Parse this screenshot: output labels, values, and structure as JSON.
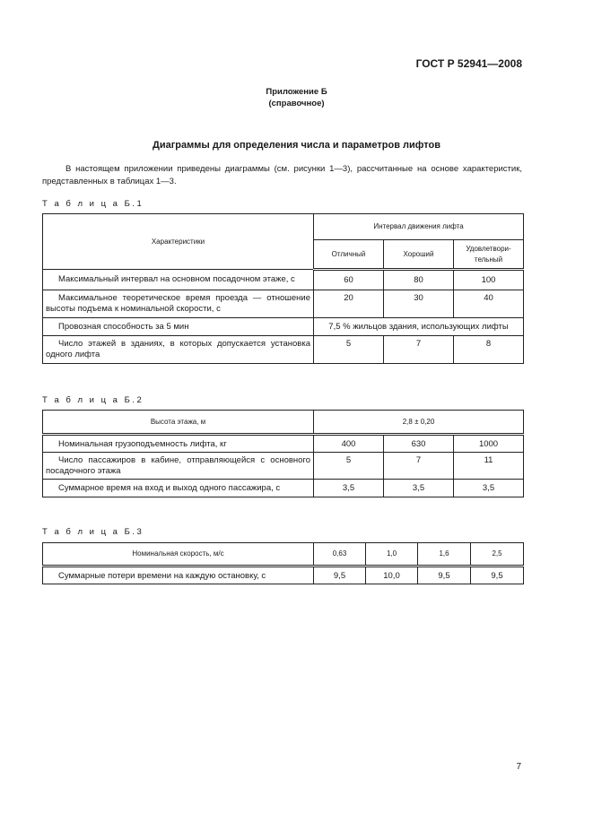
{
  "header": {
    "doc_id": "ГОСТ Р 52941—2008"
  },
  "appendix": {
    "label": "Приложение Б",
    "type": "(справочное)"
  },
  "title": "Диаграммы для определения числа и параметров лифтов",
  "intro": "В настоящем приложении приведены диаграммы (см. рисунки 1—3), рассчитанные на основе характеристик, представленных в таблицах 1—3.",
  "table1": {
    "caption": "Т а б л и ц а  Б.1",
    "col_header": "Характеристики",
    "group_header": "Интервал движения лифта",
    "sub_headers": [
      "Отличный",
      "Хороший",
      "Удовлетвори-тельный"
    ],
    "rows": [
      {
        "label": "Максимальный интервал на основном посадочном этаже, с",
        "values": [
          "60",
          "80",
          "100"
        ]
      },
      {
        "label": "Максимальное теоретическое время проезда — отношение высоты подъема к номинальной скорости, с",
        "values": [
          "20",
          "30",
          "40"
        ]
      },
      {
        "label": "Провозная способность за 5 мин",
        "merged": "7,5 % жильцов здания, использующих лифты"
      },
      {
        "label": "Число этажей в зданиях, в которых допускается установка одного лифта",
        "values": [
          "5",
          "7",
          "8"
        ]
      }
    ]
  },
  "table2": {
    "caption": "Т а б л и ц а  Б.2",
    "head_label": "Высота этажа, м",
    "head_value": "2,8 ± 0,20",
    "rows": [
      {
        "label": "Номинальная грузоподъемность лифта, кг",
        "values": [
          "400",
          "630",
          "1000"
        ]
      },
      {
        "label": "Число пассажиров в кабине, отправляющейся с основного посадочного этажа",
        "values": [
          "5",
          "7",
          "11"
        ]
      },
      {
        "label": "Суммарное время на вход и выход одного пассажира, с",
        "values": [
          "3,5",
          "3,5",
          "3,5"
        ]
      }
    ]
  },
  "table3": {
    "caption": "Т а б л и ц а  Б.3",
    "head_label": "Номинальная скорость, м/с",
    "head_values": [
      "0,63",
      "1,0",
      "1,6",
      "2,5"
    ],
    "rows": [
      {
        "label": "Суммарные потери времени на каждую остановку, с",
        "values": [
          "9,5",
          "10,0",
          "9,5",
          "9,5"
        ]
      }
    ]
  },
  "page_number": "7"
}
